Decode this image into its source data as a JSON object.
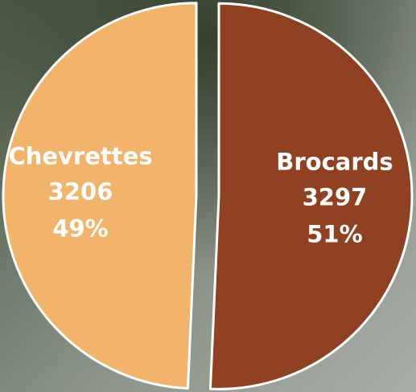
{
  "chart_data": {
    "type": "pie",
    "categories": [
      "Brocards",
      "Chevrettes"
    ],
    "values": [
      3297,
      3206
    ],
    "percentages": [
      51,
      49
    ],
    "percentage_labels": [
      "51%",
      "49%"
    ],
    "colors": [
      "#8f4122",
      "#f2b36b"
    ]
  }
}
